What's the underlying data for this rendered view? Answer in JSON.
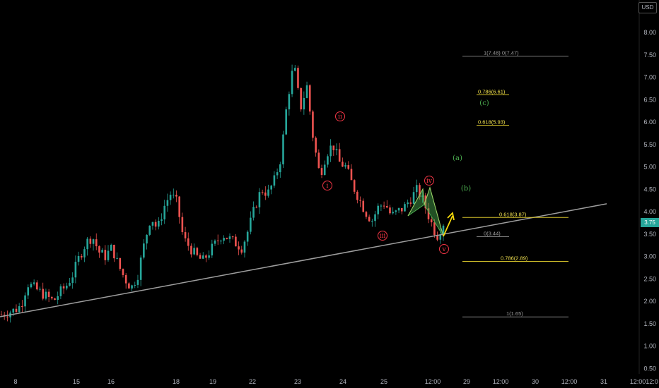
{
  "currency": "USD",
  "current_price": "3.75",
  "colors": {
    "background": "#000000",
    "up": "#26a69a",
    "down": "#ef5350",
    "fib_yellow": "#d4c12a",
    "fib_gray": "#7d7d7d",
    "wave_red": "#f23645",
    "wave_green": "#4caf50",
    "arrow": "#f5d90a",
    "trendline": "#9e9e9e"
  },
  "price_axis": [
    "8.00",
    "7.50",
    "7.00",
    "6.50",
    "6.00",
    "5.50",
    "5.00",
    "4.50",
    "4.00",
    "3.50",
    "3.00",
    "2.50",
    "2.00",
    "1.50",
    "1.00",
    "0.50"
  ],
  "date_axis": [
    "8",
    "15",
    "16",
    "18",
    "19",
    "22",
    "23",
    "24",
    "25",
    "12:00",
    "29",
    "12:00",
    "30",
    "12:00",
    "31",
    "12:00",
    "12:0"
  ],
  "fib_levels": [
    {
      "label": "1(7.48)  0(7.47)",
      "price": 7.47,
      "color": "gray"
    },
    {
      "label": "0.786(6.61)",
      "price": 6.61,
      "color": "yellow"
    },
    {
      "label": "0.618(5.93)",
      "price": 5.93,
      "color": "yellow"
    },
    {
      "label": "0.618(3.87)",
      "price": 3.87,
      "color": "yellow"
    },
    {
      "label": "0(3.44)",
      "price": 3.44,
      "color": "gray"
    },
    {
      "label": "0.786(2.89)",
      "price": 2.89,
      "color": "yellow"
    },
    {
      "label": "1(1.65)",
      "price": 1.65,
      "color": "gray"
    }
  ],
  "wave_labels": [
    "i",
    "ii",
    "iii",
    "iv",
    "v"
  ],
  "projection_labels": [
    "(a)",
    "(b)",
    "(c)"
  ],
  "chart_data": {
    "type": "candlestick",
    "ylim": [
      0.4,
      8.3
    ],
    "candle_path_prices": [
      1.7,
      1.75,
      1.8,
      1.9,
      2.4,
      2.3,
      2.2,
      2.1,
      2.0,
      2.2,
      2.35,
      2.6,
      3.0,
      3.3,
      3.45,
      3.1,
      3.0,
      3.2,
      2.8,
      2.5,
      2.3,
      2.6,
      3.3,
      3.9,
      3.6,
      4.1,
      4.4,
      4.2,
      3.4,
      3.2,
      3.0,
      2.9,
      3.1,
      3.3,
      3.5,
      3.4,
      3.3,
      3.2,
      3.6,
      4.1,
      4.5,
      4.4,
      4.7,
      5.2,
      6.5,
      7.3,
      6.3,
      6.8,
      5.6,
      4.8,
      5.3,
      5.5,
      5.1,
      5.0,
      4.6,
      4.3,
      4.0,
      3.8,
      4.1,
      4.2,
      3.9,
      4.0,
      4.1,
      4.3,
      4.5,
      4.2,
      3.8,
      3.45,
      3.75
    ],
    "trendline": {
      "start_price": 1.7,
      "end_price": 4.08,
      "start_date": "8",
      "end_date": "31"
    }
  }
}
